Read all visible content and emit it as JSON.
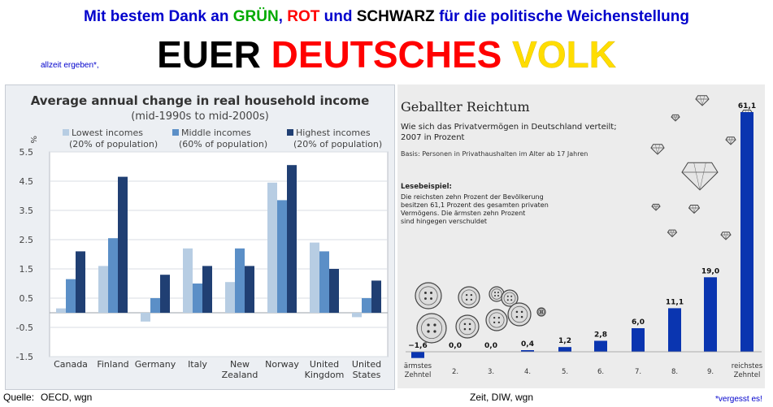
{
  "header": {
    "line1": [
      {
        "text": "Mit bestem Dank an ",
        "color": "#0000cc"
      },
      {
        "text": "GRÜN",
        "color": "#00aa00"
      },
      {
        "text": ", ",
        "color": "#0000cc"
      },
      {
        "text": "ROT",
        "color": "#ff0000"
      },
      {
        "text": " und ",
        "color": "#0000cc"
      },
      {
        "text": "SCHWARZ",
        "color": "#000000"
      },
      {
        "text": " für die politische Weichenstellung",
        "color": "#0000cc"
      }
    ],
    "prefix": "allzeit ergeben*,",
    "line2": [
      {
        "text": "EUER ",
        "color": "#000000"
      },
      {
        "text": "DEUTSCHES ",
        "color": "#ff0000"
      },
      {
        "text": "VOLK",
        "color": "#ffdd00"
      }
    ]
  },
  "footer": {
    "left_label": "Quelle:",
    "left_source": "OECD, wgn",
    "middle": "Zeit, DIW, wgn",
    "right": "*vergesst es!"
  },
  "chart_data": [
    {
      "type": "bar",
      "title": "Average annual change in real household income",
      "subtitle": "(mid-1990s to mid-2000s)",
      "ylabel": "%",
      "ylim": [
        -1.5,
        5.5
      ],
      "yticks": [
        "5.5",
        "4.5",
        "3.5",
        "2.5",
        "1.5",
        "0.5",
        "-0.5",
        "-1.5"
      ],
      "grid": true,
      "legend_position": "top",
      "categories": [
        [
          "Canada"
        ],
        [
          "Finland"
        ],
        [
          "Germany"
        ],
        [
          "Italy"
        ],
        [
          "New",
          "Zealand"
        ],
        [
          "Norway"
        ],
        [
          "United",
          "Kingdom"
        ],
        [
          "United",
          "States"
        ]
      ],
      "series": [
        {
          "name": "Lowest incomes",
          "note": "(20% of population)",
          "color": "#b7cde3",
          "values": [
            0.15,
            1.6,
            -0.3,
            2.2,
            1.05,
            4.45,
            2.4,
            -0.15
          ]
        },
        {
          "name": "Middle incomes",
          "note": "(60% of population)",
          "color": "#5b8fc7",
          "values": [
            1.15,
            2.55,
            0.5,
            1.0,
            2.2,
            3.85,
            2.1,
            0.5
          ]
        },
        {
          "name": "Highest incomes",
          "note": "(20% of population)",
          "color": "#203f73",
          "values": [
            2.1,
            4.65,
            1.3,
            1.6,
            1.6,
            5.05,
            1.5,
            1.1
          ]
        }
      ]
    },
    {
      "type": "bar",
      "title": "Geballter Reichtum",
      "subtitle": [
        "Wie sich das Privatvermögen in Deutschland verteilt;",
        "2007 in Prozent"
      ],
      "basis": "Basis: Personen in Privathaushalten im Alter ab 17 Jahren",
      "example_heading": "Lesebeispiel:",
      "example_lines": [
        "Die reichsten zehn Prozent der Bevölkerung",
        "besitzen 61,1 Prozent des gesamten privaten",
        "Vermögens. Die ärmsten zehn Prozent",
        "sind hingegen verschuldet"
      ],
      "categories": [
        [
          "ärmstes",
          "Zehntel"
        ],
        [
          "2."
        ],
        [
          "3."
        ],
        [
          "4."
        ],
        [
          "5."
        ],
        [
          "6."
        ],
        [
          "7."
        ],
        [
          "8."
        ],
        [
          "9."
        ],
        [
          "reichstes",
          "Zehntel"
        ]
      ],
      "values": [
        -1.6,
        0.0,
        0.0,
        0.4,
        1.2,
        2.8,
        6.0,
        11.1,
        19.0,
        61.1
      ],
      "value_labels": [
        "−1,6",
        "0,0",
        "0,0",
        "0,4",
        "1,2",
        "2,8",
        "6,0",
        "11,1",
        "19,0",
        "61,1"
      ],
      "bar_color": "#0a35b0"
    }
  ]
}
